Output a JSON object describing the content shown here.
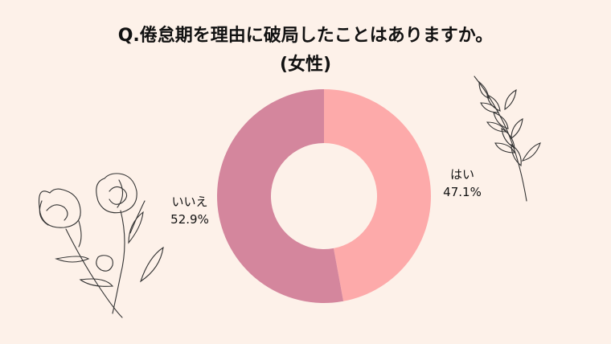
{
  "chart_data": {
    "type": "pie",
    "title_line1": "Q.倦怠期を理由に破局したことはありますか。",
    "title_line2": "(女性)",
    "categories": [
      "はい",
      "いいえ"
    ],
    "values": [
      47.1,
      52.9
    ],
    "value_labels": [
      "47.1%",
      "52.9%"
    ],
    "colors": [
      "#fdaaaa",
      "#d4869d"
    ],
    "donut": true
  }
}
